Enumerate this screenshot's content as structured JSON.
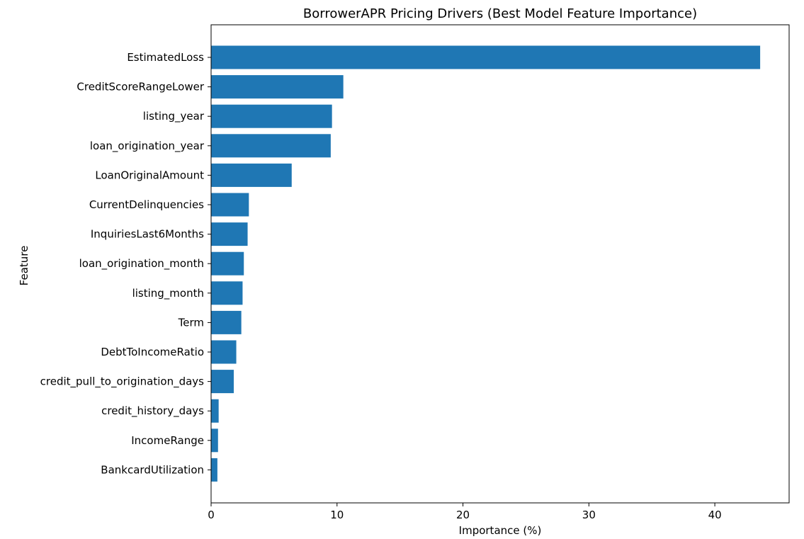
{
  "chart_data": {
    "type": "bar",
    "orientation": "horizontal",
    "title": "BorrowerAPR Pricing Drivers (Best Model Feature Importance)",
    "xlabel": "Importance (%)",
    "ylabel": "Feature",
    "xlim": [
      0,
      45.9
    ],
    "x_ticks": [
      "0",
      "10",
      "20",
      "30",
      "40"
    ],
    "grid": false,
    "bar_color": "#1f77b4",
    "categories": [
      "EstimatedLoss",
      "CreditScoreRangeLower",
      "listing_year",
      "loan_origination_year",
      "LoanOriginalAmount",
      "CurrentDelinquencies",
      "InquiriesLast6Months",
      "loan_origination_month",
      "listing_month",
      "Term",
      "DebtToIncomeRatio",
      "credit_pull_to_origination_days",
      "credit_history_days",
      "IncomeRange",
      "BankcardUtilization"
    ],
    "values": [
      43.6,
      10.5,
      9.6,
      9.5,
      6.4,
      3.0,
      2.9,
      2.6,
      2.5,
      2.4,
      2.0,
      1.8,
      0.6,
      0.55,
      0.5
    ]
  }
}
